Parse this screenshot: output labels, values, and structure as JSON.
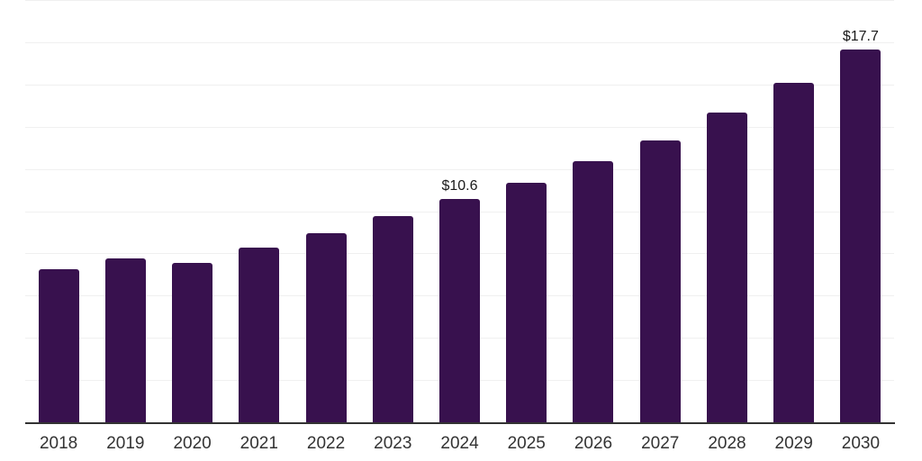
{
  "chart_data": {
    "type": "bar",
    "title": "",
    "xlabel": "",
    "ylabel": "",
    "categories": [
      "2018",
      "2019",
      "2020",
      "2021",
      "2022",
      "2023",
      "2024",
      "2025",
      "2026",
      "2027",
      "2028",
      "2029",
      "2030"
    ],
    "values": [
      7.3,
      7.8,
      7.6,
      8.3,
      9.0,
      9.8,
      10.6,
      11.4,
      12.4,
      13.4,
      14.7,
      16.1,
      17.7
    ],
    "data_labels": [
      {
        "category": "2024",
        "text": "$10.6"
      },
      {
        "category": "2030",
        "text": "$17.7"
      }
    ],
    "ylim": [
      0,
      20
    ],
    "gridline_step": 2,
    "grid": "horizontal",
    "legend": "none",
    "colors": {
      "bar": "#38114e",
      "gridline": "#f0f0f0",
      "axis_line": "#333333",
      "tick_label": "#333333",
      "data_label": "#1a1a1a",
      "background": "#ffffff"
    }
  }
}
